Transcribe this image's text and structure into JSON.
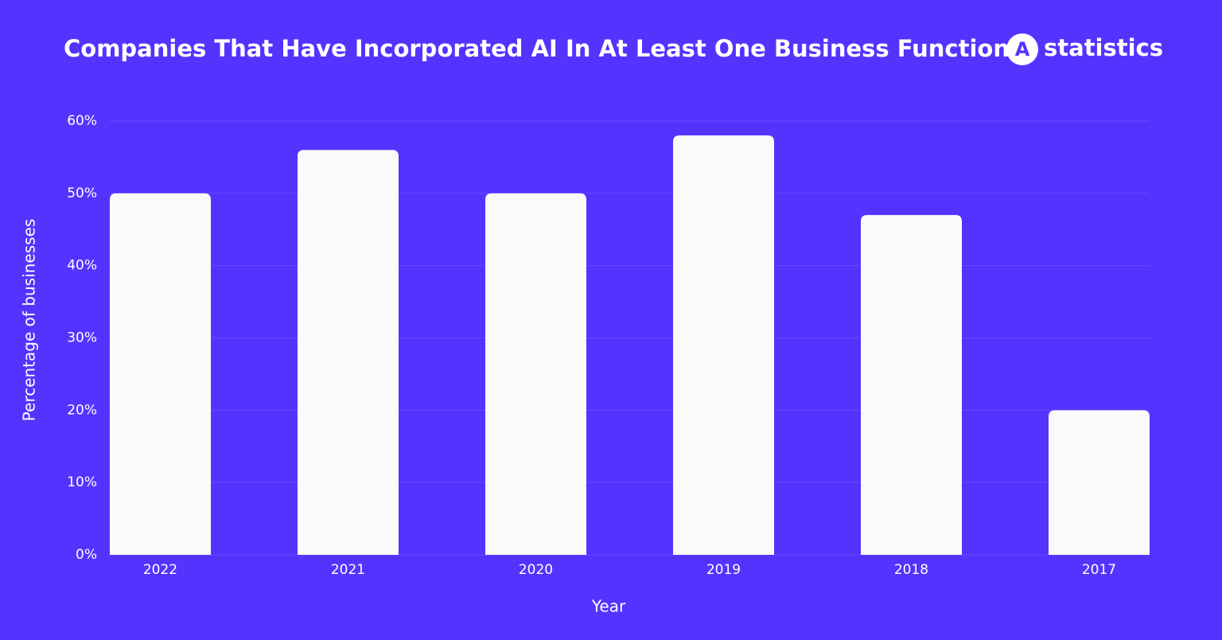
{
  "brand": {
    "icon": "A",
    "name": "statistics"
  },
  "chart_data": {
    "type": "bar",
    "title": "Companies That Have Incorporated AI In At Least One Business Function",
    "xlabel": "Year",
    "ylabel": "Percentage of businesses",
    "categories": [
      "2022",
      "2021",
      "2020",
      "2019",
      "2018",
      "2017"
    ],
    "values": [
      50,
      56,
      50,
      58,
      47,
      20
    ],
    "color": "#fafafa",
    "ylim": [
      0,
      60
    ],
    "yticks": [
      {
        "value": 0,
        "label": "0%"
      },
      {
        "value": 10,
        "label": "10%"
      },
      {
        "value": 20,
        "label": "20%"
      },
      {
        "value": 30,
        "label": "30%"
      },
      {
        "value": 40,
        "label": "40%"
      },
      {
        "value": 50,
        "label": "50%"
      },
      {
        "value": 60,
        "label": "60%"
      }
    ],
    "grid": true
  }
}
